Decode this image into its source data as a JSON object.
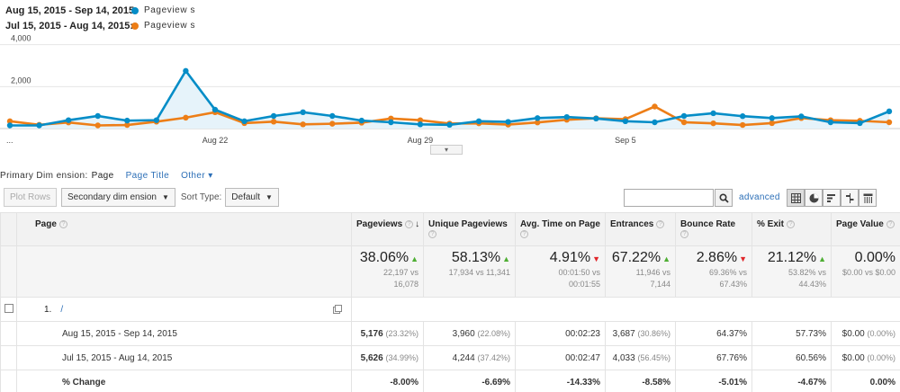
{
  "legend": [
    {
      "range": "Aug 15, 2015 - Sep 14, 2015:",
      "metric": "Pageview s",
      "color": "#058dc7"
    },
    {
      "range": "Jul 15, 2015 - Aug 14, 2015:",
      "metric": "Pageview s",
      "color": "#ed7e17"
    }
  ],
  "chart_data": {
    "type": "line",
    "x": [
      "Aug 15",
      "Aug 16",
      "Aug 17",
      "Aug 18",
      "Aug 19",
      "Aug 20",
      "Aug 21",
      "Aug 22",
      "Aug 23",
      "Aug 24",
      "Aug 25",
      "Aug 26",
      "Aug 27",
      "Aug 28",
      "Aug 29",
      "Aug 30",
      "Aug 31",
      "Sep 1",
      "Sep 2",
      "Sep 3",
      "Sep 4",
      "Sep 5",
      "Sep 6",
      "Sep 7",
      "Sep 8",
      "Sep 9",
      "Sep 10",
      "Sep 11",
      "Sep 12",
      "Sep 13",
      "Sep 14"
    ],
    "tick_labels": [
      "...",
      "Aug 22",
      "Aug 29",
      "Sep 5"
    ],
    "y_ticks": [
      "4,000",
      "2,000"
    ],
    "ylim": [
      0,
      4500
    ],
    "series": [
      {
        "values": [
          150,
          150,
          400,
          600,
          380,
          400,
          2750,
          900,
          350,
          600,
          780,
          600,
          380,
          300,
          200,
          180,
          350,
          320,
          500,
          550,
          480,
          350,
          300,
          600,
          730,
          590,
          500,
          580,
          300,
          260,
          820
        ],
        "color": "#058dc7",
        "fill": true
      },
      {
        "values": [
          350,
          180,
          290,
          150,
          170,
          330,
          520,
          780,
          260,
          330,
          200,
          230,
          280,
          480,
          400,
          240,
          250,
          190,
          290,
          420,
          490,
          450,
          1050,
          300,
          250,
          170,
          260,
          500,
          400,
          370,
          300
        ],
        "color": "#ed7e17",
        "fill": false
      }
    ]
  },
  "primary_dimension": {
    "label": "Primary Dim ension:",
    "active": "Page",
    "link": "Page Title",
    "other": "Other ▾"
  },
  "toolbar": {
    "plot_rows": "Plot Rows",
    "secondary": "Secondary dim ension",
    "sort_type": "Sort Type:",
    "sort_default": "Default"
  },
  "search": {
    "placeholder": "",
    "advanced": "advanced"
  },
  "columns": {
    "page": "Page",
    "pageviews": "Pageviews",
    "unique": "Unique Pageviews",
    "avg_time": "Avg. Time on Page",
    "entrances": "Entrances",
    "bounce": "Bounce Rate",
    "exit": "% Exit",
    "value": "Page Value"
  },
  "summary": {
    "pageviews": {
      "pct": "38.06%",
      "dir": "up",
      "sub1": "22,197 vs",
      "sub2": "16,078"
    },
    "unique": {
      "pct": "58.13%",
      "dir": "up",
      "sub1": "17,934 vs 11,341",
      "sub2": ""
    },
    "avg_time": {
      "pct": "4.91%",
      "dir": "down",
      "sub1": "00:01:50 vs",
      "sub2": "00:01:55"
    },
    "entrances": {
      "pct": "67.22%",
      "dir": "up",
      "sub1": "11,946 vs",
      "sub2": "7,144"
    },
    "bounce": {
      "pct": "2.86%",
      "dir": "down",
      "sub1": "69.36% vs",
      "sub2": "67.43%"
    },
    "exit": {
      "pct": "21.12%",
      "dir": "up",
      "sub1": "53.82% vs",
      "sub2": "44.43%"
    },
    "value": {
      "pct": "0.00%",
      "dir": "",
      "sub1": "$0.00 vs $0.00",
      "sub2": ""
    }
  },
  "page_row": {
    "num": "1.",
    "path": "/"
  },
  "rows": [
    {
      "label": "Aug 15, 2015 - Sep 14, 2015",
      "pageviews": "5,176",
      "pageviews_pct": "(23.32%)",
      "unique": "3,960",
      "unique_pct": "(22.08%)",
      "avg_time": "00:02:23",
      "entrances": "3,687",
      "entrances_pct": "(30.86%)",
      "bounce": "64.37%",
      "exit": "57.73%",
      "value": "$0.00",
      "value_pct": "(0.00%)"
    },
    {
      "label": "Jul 15, 2015 - Aug 14, 2015",
      "pageviews": "5,626",
      "pageviews_pct": "(34.99%)",
      "unique": "4,244",
      "unique_pct": "(37.42%)",
      "avg_time": "00:02:47",
      "entrances": "4,033",
      "entrances_pct": "(56.45%)",
      "bounce": "67.76%",
      "exit": "60.56%",
      "value": "$0.00",
      "value_pct": "(0.00%)"
    }
  ],
  "change_row": {
    "label": "% Change",
    "pageviews": "-8.00%",
    "unique": "-6.69%",
    "avg_time": "-14.33%",
    "entrances": "-8.58%",
    "bounce": "-5.01%",
    "exit": "-4.67%",
    "value": "0.00%"
  },
  "icons": {
    "search": "search-icon",
    "grid": "grid-view-icon",
    "pie": "pie-view-icon",
    "bars": "performance-view-icon",
    "compare": "comparison-view-icon",
    "pivot": "pivot-view-icon"
  }
}
